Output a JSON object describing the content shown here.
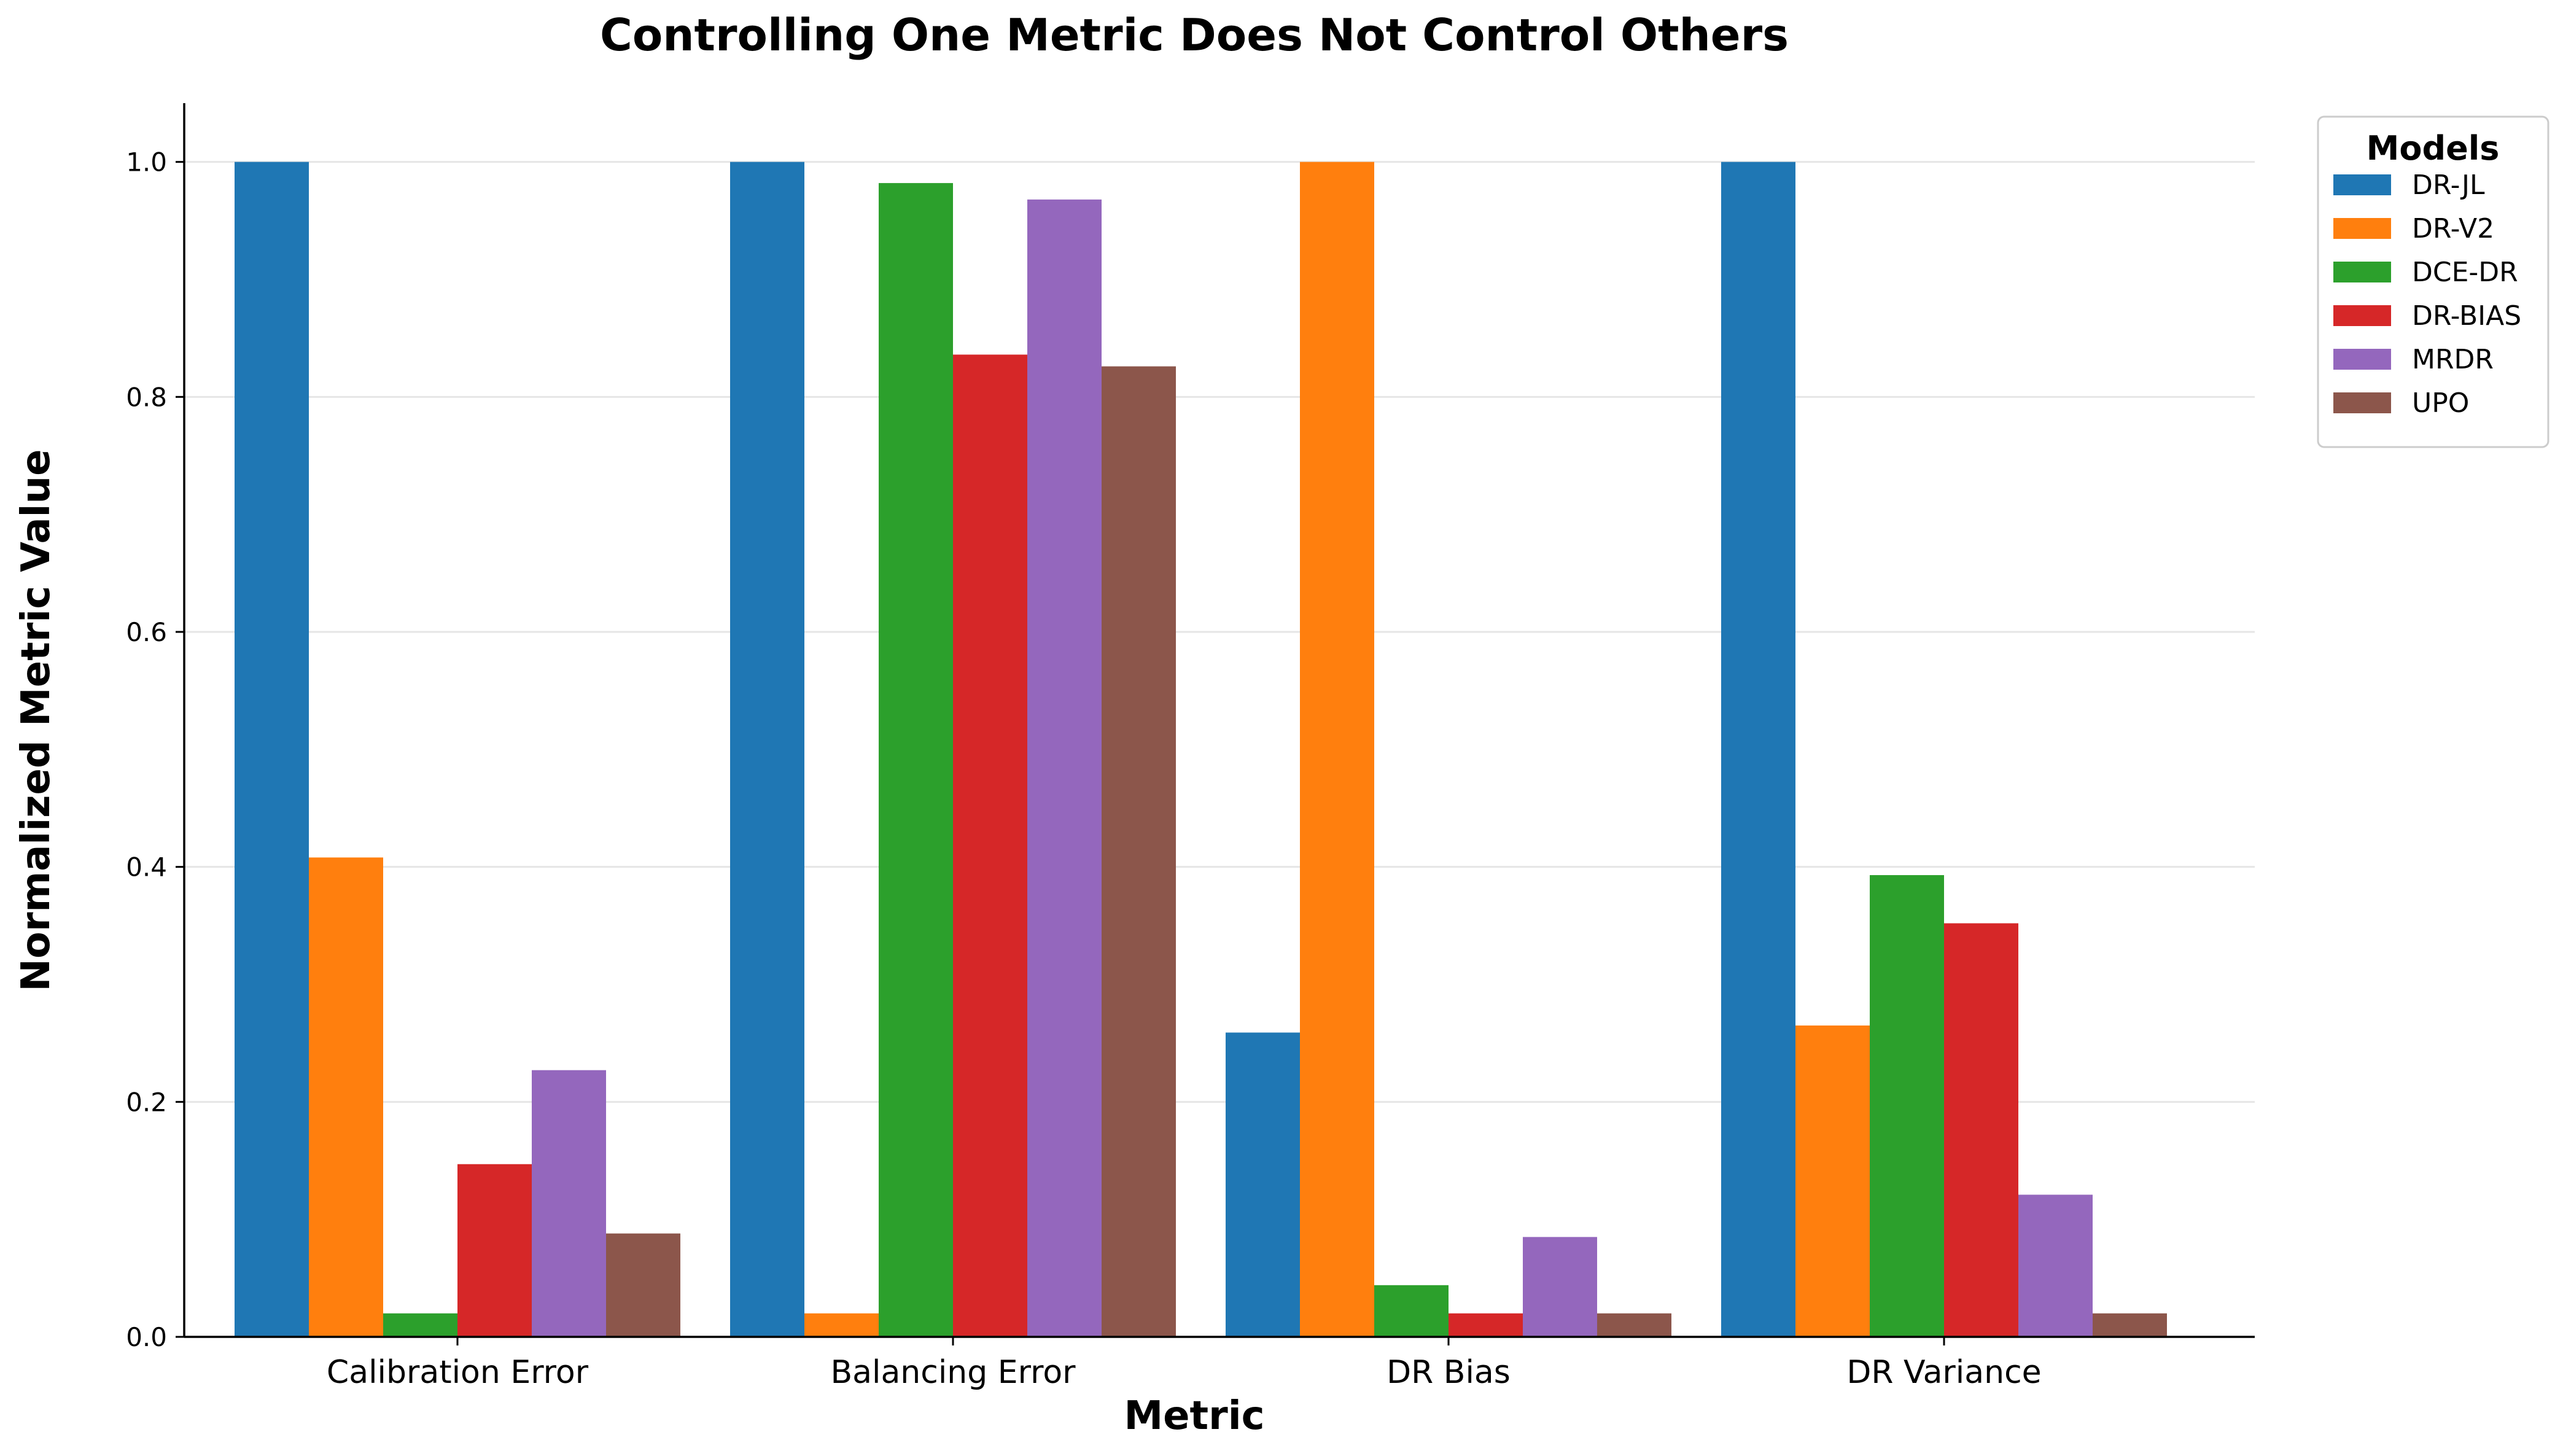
{
  "chart_data": {
    "type": "bar",
    "title": "Controlling One Metric Does Not Control Others",
    "xlabel": "Metric",
    "ylabel": "Normalized Metric Value",
    "categories": [
      "Calibration Error",
      "Balancing Error",
      "DR Bias",
      "DR Variance"
    ],
    "ylim": [
      0,
      1.05
    ],
    "yticks": [
      "0.0",
      "0.2",
      "0.4",
      "0.6",
      "0.8",
      "1.0"
    ],
    "grid": "horizontal",
    "legend": {
      "title": "Models",
      "placement": "outside-top-right"
    },
    "series": [
      {
        "name": "DR-JL",
        "color": "#1f77b4",
        "values": [
          1.0,
          1.0,
          0.259,
          1.0
        ]
      },
      {
        "name": "DR-V2",
        "color": "#ff7f0e",
        "values": [
          0.408,
          0.02,
          1.0,
          0.265
        ]
      },
      {
        "name": "DCE-DR",
        "color": "#2ca02c",
        "values": [
          0.02,
          0.982,
          0.044,
          0.393
        ]
      },
      {
        "name": "DR-BIAS",
        "color": "#d62728",
        "values": [
          0.147,
          0.836,
          0.02,
          0.352
        ]
      },
      {
        "name": "MRDR",
        "color": "#9467bd",
        "values": [
          0.227,
          0.968,
          0.085,
          0.121
        ]
      },
      {
        "name": "UPO",
        "color": "#8c564b",
        "values": [
          0.088,
          0.826,
          0.02,
          0.02
        ]
      }
    ]
  }
}
